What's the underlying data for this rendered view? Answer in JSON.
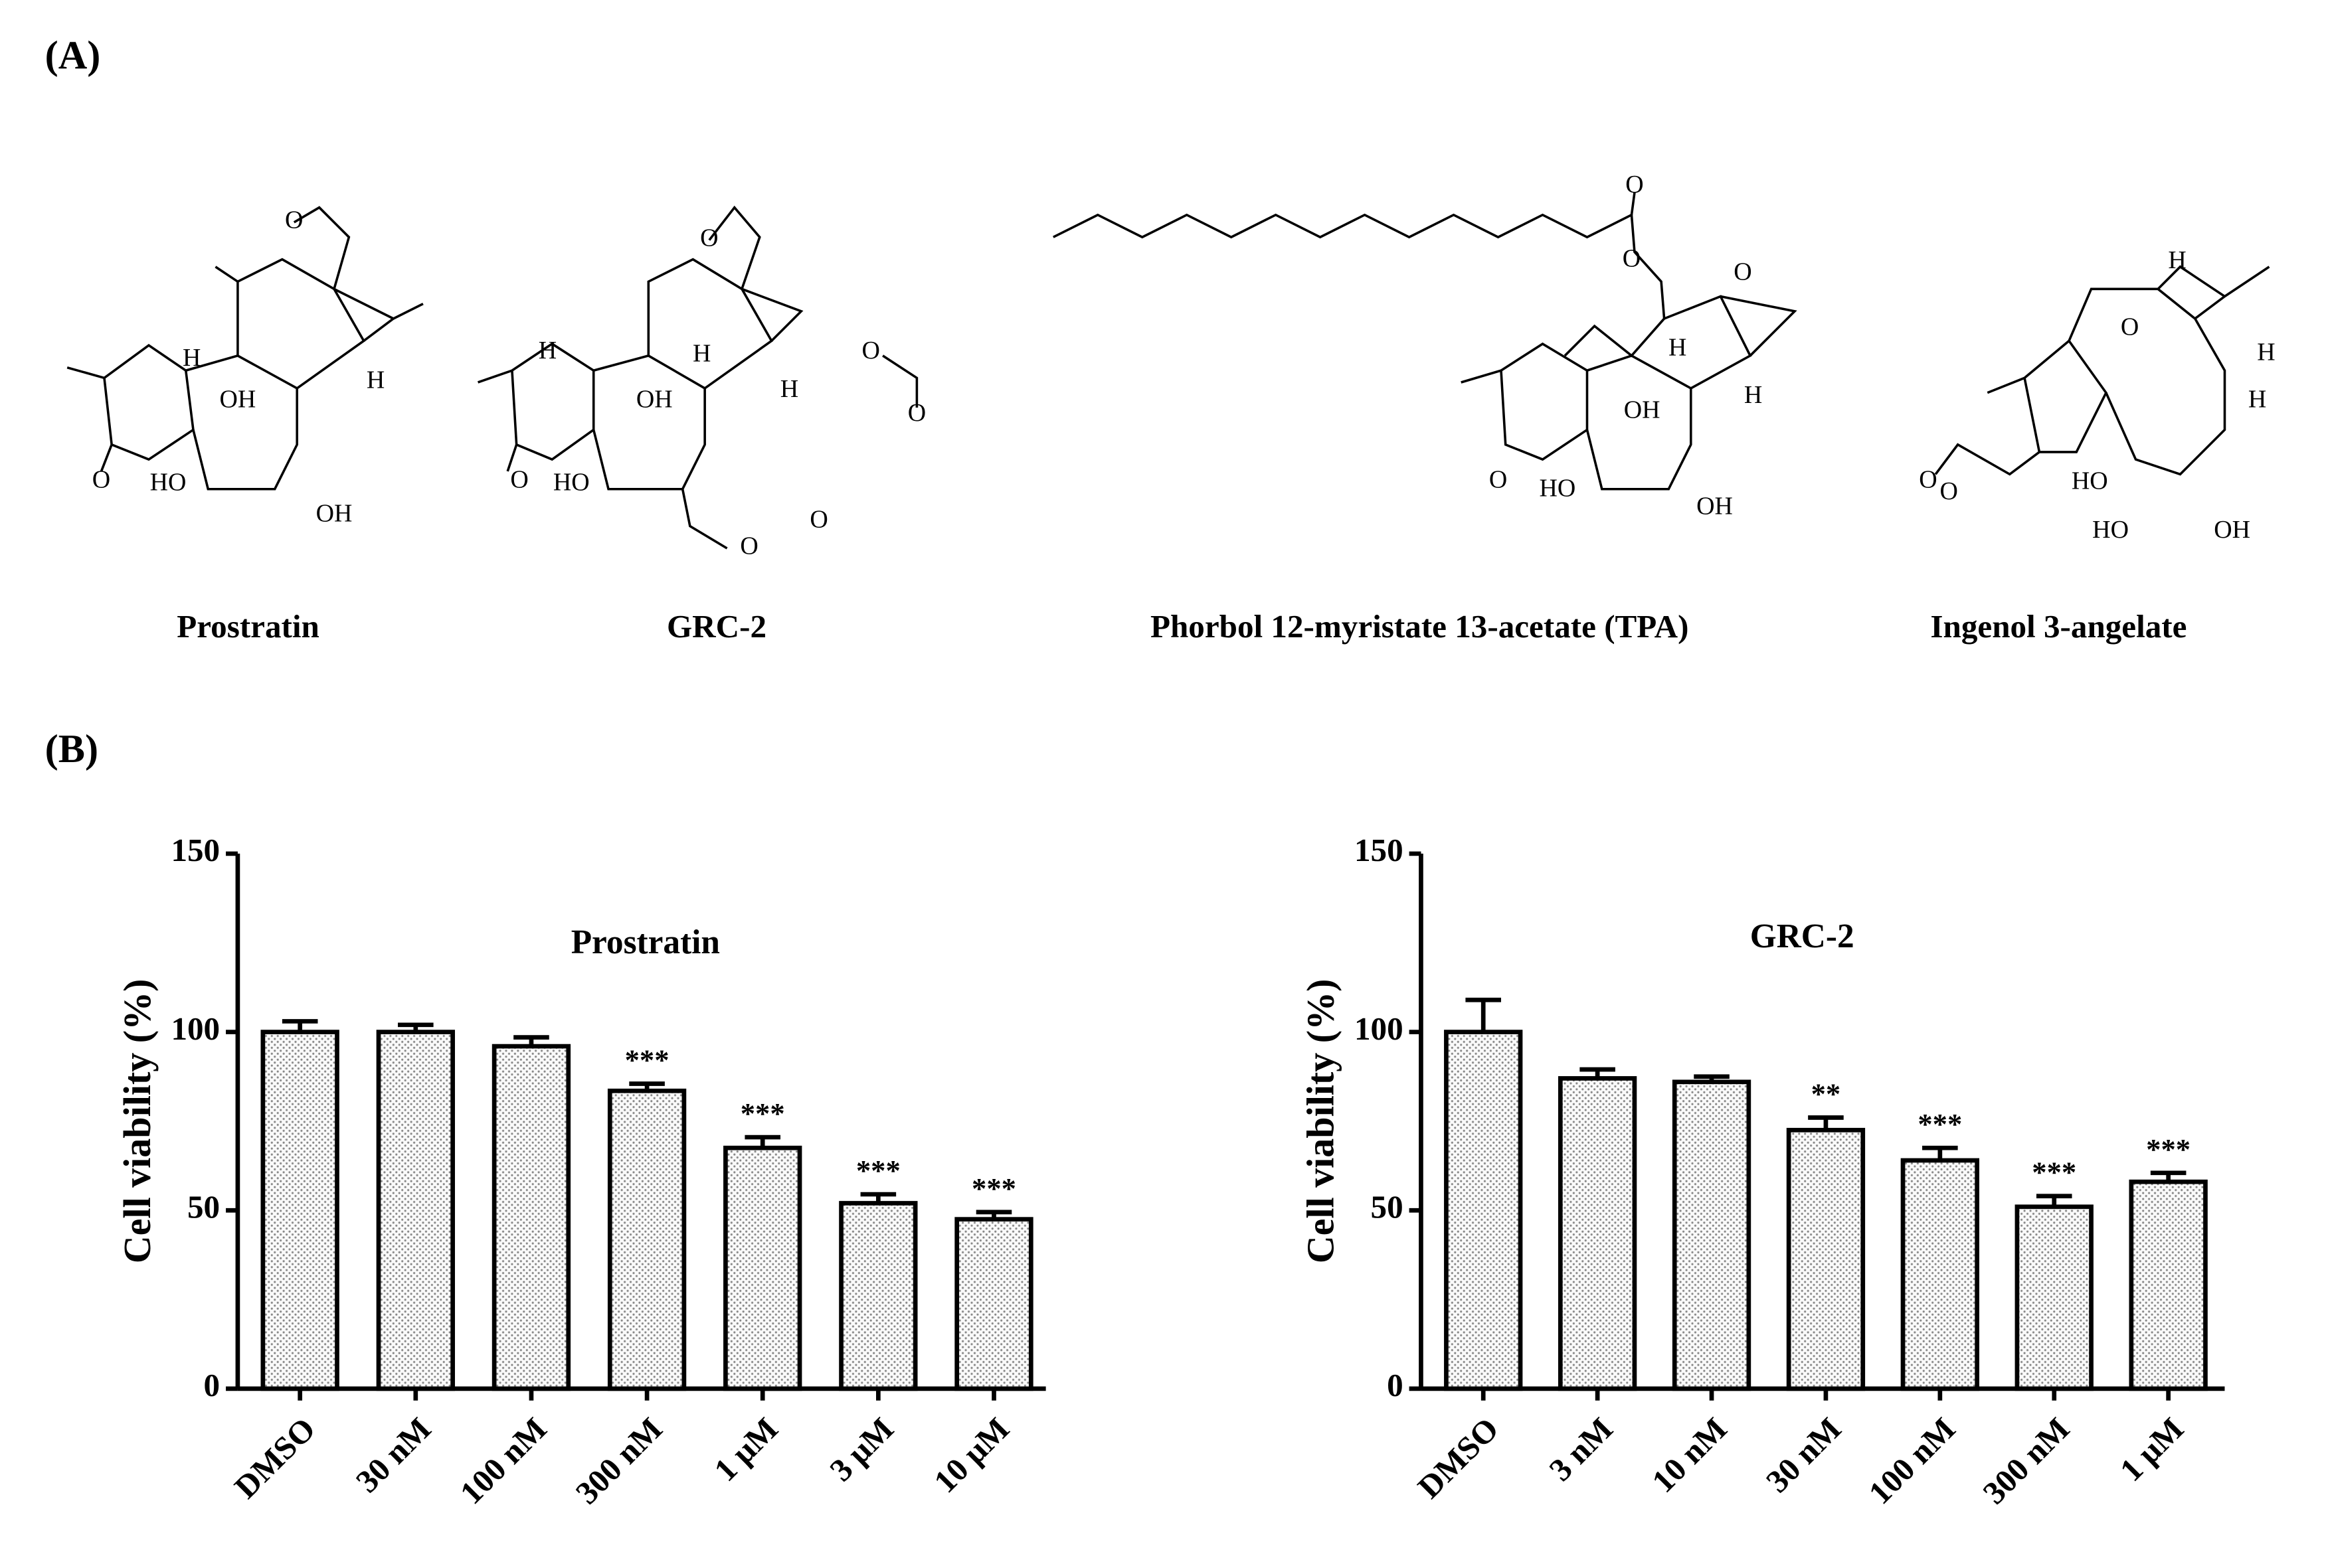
{
  "panel_labels": [
    "(A)",
    "(B)"
  ],
  "structures": [
    {
      "name": "Prostratin",
      "atoms": [
        "O",
        "H",
        "OH",
        "H",
        "O",
        "HO",
        "OH"
      ]
    },
    {
      "name": "GRC-2",
      "atoms": [
        "O",
        "H",
        "OH",
        "H",
        "H",
        "O",
        "O",
        "O",
        "HO",
        "O",
        "O"
      ]
    },
    {
      "name": "Phorbol 12-myristate 13-acetate (TPA)",
      "atoms": [
        "O",
        "O",
        "O",
        "H",
        "OH",
        "H",
        "O",
        "HO",
        "OH"
      ]
    },
    {
      "name": "Ingenol 3-angelate",
      "atoms": [
        "H",
        "H",
        "O",
        "H",
        "O",
        "O",
        "HO",
        "HO",
        "OH"
      ]
    }
  ],
  "chart_data": [
    {
      "type": "bar",
      "title": "Prostratin",
      "y_label": "Cell viability (%)",
      "categories": [
        "DMSO",
        "30 nM",
        "100 nM",
        "300 nM",
        "1 μM",
        "3 μM",
        "10 μM"
      ],
      "values": [
        100,
        100,
        96,
        83.5,
        67.5,
        52,
        47.5
      ],
      "errors": [
        3,
        2,
        2.5,
        2,
        3,
        2.5,
        2
      ],
      "annotations": [
        null,
        null,
        null,
        "***",
        "***",
        "***",
        "***"
      ],
      "ylim": [
        0,
        150
      ],
      "yticks": [
        0,
        50,
        100,
        150
      ],
      "color": "#f2f2f2"
    },
    {
      "type": "bar",
      "title": "GRC-2",
      "y_label": "Cell viability (%)",
      "categories": [
        "DMSO",
        "3 nM",
        "10 nM",
        "30 nM",
        "100 nM",
        "300 nM",
        "1 μM"
      ],
      "values": [
        100,
        87,
        86,
        72.5,
        64,
        51,
        58
      ],
      "errors": [
        9,
        2.5,
        1.5,
        3.5,
        3.5,
        3,
        2.5
      ],
      "annotations": [
        null,
        null,
        null,
        "**",
        "***",
        "***",
        "***"
      ],
      "ylim": [
        0,
        150
      ],
      "yticks": [
        0,
        50,
        100,
        150
      ],
      "color": "#f2f2f2"
    }
  ]
}
